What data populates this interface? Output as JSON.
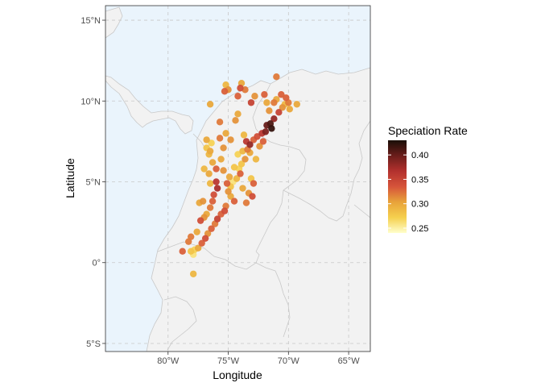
{
  "map": {
    "x_axis_title": "Longitude",
    "y_axis_title": "Latitude",
    "x_ticks": [
      {
        "value": -80,
        "label": "80°W"
      },
      {
        "value": -75,
        "label": "75°W"
      },
      {
        "value": -70,
        "label": "70°W"
      },
      {
        "value": -65,
        "label": "65°W"
      }
    ],
    "y_ticks": [
      {
        "value": 15,
        "label": "15°N"
      },
      {
        "value": 10,
        "label": "10°N"
      },
      {
        "value": 5,
        "label": "5°N"
      },
      {
        "value": 0,
        "label": "0°"
      },
      {
        "value": -5,
        "label": "5°S"
      }
    ],
    "colors": {
      "ocean": "#eaf4fc",
      "land": "#f2f2f2",
      "border": "#c8c8c8",
      "grid": "#cccccc",
      "panel_border": "#333333"
    }
  },
  "legend": {
    "title": "Speciation Rate",
    "labels": [
      "0.40",
      "0.35",
      "0.30",
      "0.25"
    ],
    "scale": [
      "#ffffcc",
      "#f5d04e",
      "#e8a33a",
      "#d6543a",
      "#b3312e",
      "#6b1d1a",
      "#1a0f08"
    ]
  },
  "chart_data": {
    "type": "scatter",
    "xlabel": "Longitude",
    "ylabel": "Latitude",
    "xlim": [
      -85.2,
      -63.2
    ],
    "ylim": [
      -5.5,
      15.9
    ],
    "color_label": "Speciation Rate",
    "color_range": [
      0.24,
      0.43
    ],
    "points": [
      [
        -69.9,
        9.5,
        0.3
      ],
      [
        -70.0,
        9.9,
        0.32
      ],
      [
        -70.2,
        10.2,
        0.33
      ],
      [
        -70.5,
        9.6,
        0.31
      ],
      [
        -70.8,
        9.3,
        0.35
      ],
      [
        -71.2,
        8.9,
        0.38
      ],
      [
        -71.5,
        8.6,
        0.41
      ],
      [
        -71.4,
        8.3,
        0.42
      ],
      [
        -71.8,
        8.5,
        0.4
      ],
      [
        -71.9,
        8.1,
        0.39
      ],
      [
        -72.2,
        8.0,
        0.36
      ],
      [
        -72.6,
        7.8,
        0.34
      ],
      [
        -72.9,
        7.6,
        0.33
      ],
      [
        -73.2,
        7.3,
        0.38
      ],
      [
        -73.5,
        7.5,
        0.36
      ],
      [
        -73.7,
        7.9,
        0.29
      ],
      [
        -73.4,
        7.0,
        0.32
      ],
      [
        -73.2,
        6.8,
        0.3
      ],
      [
        -73.6,
        6.4,
        0.31
      ],
      [
        -73.9,
        6.1,
        0.28
      ],
      [
        -74.1,
        5.8,
        0.27
      ],
      [
        -74.0,
        5.5,
        0.33
      ],
      [
        -74.3,
        5.2,
        0.29
      ],
      [
        -74.6,
        5.0,
        0.26
      ],
      [
        -74.8,
        4.7,
        0.28
      ],
      [
        -75.0,
        4.4,
        0.31
      ],
      [
        -74.8,
        4.1,
        0.3
      ],
      [
        -74.5,
        3.8,
        0.33
      ],
      [
        -75.2,
        3.5,
        0.32
      ],
      [
        -75.3,
        3.2,
        0.34
      ],
      [
        -75.6,
        3.0,
        0.33
      ],
      [
        -75.9,
        2.7,
        0.35
      ],
      [
        -76.1,
        2.4,
        0.32
      ],
      [
        -76.4,
        2.1,
        0.33
      ],
      [
        -76.7,
        1.8,
        0.31
      ],
      [
        -76.9,
        1.5,
        0.34
      ],
      [
        -77.2,
        1.2,
        0.33
      ],
      [
        -77.5,
        0.9,
        0.3
      ],
      [
        -77.8,
        0.8,
        0.27
      ],
      [
        -78.1,
        0.7,
        0.28
      ],
      [
        -77.9,
        0.5,
        0.26
      ],
      [
        -76.0,
        5.0,
        0.36
      ],
      [
        -75.9,
        4.6,
        0.37
      ],
      [
        -76.2,
        4.2,
        0.34
      ],
      [
        -76.3,
        3.8,
        0.33
      ],
      [
        -76.5,
        3.4,
        0.32
      ],
      [
        -76.8,
        3.0,
        0.3
      ],
      [
        -77.0,
        2.8,
        0.31
      ],
      [
        -77.3,
        2.6,
        0.34
      ],
      [
        -76.0,
        5.8,
        0.33
      ],
      [
        -76.3,
        6.2,
        0.3
      ],
      [
        -76.6,
        6.7,
        0.29
      ],
      [
        -76.8,
        7.1,
        0.28
      ],
      [
        -76.4,
        7.4,
        0.27
      ],
      [
        -76.5,
        6.9,
        0.3
      ],
      [
        -75.6,
        6.4,
        0.3
      ],
      [
        -75.4,
        7.1,
        0.31
      ],
      [
        -75.7,
        7.7,
        0.32
      ],
      [
        -75.3,
        10.6,
        0.33
      ],
      [
        -75.0,
        10.7,
        0.31
      ],
      [
        -74.0,
        10.8,
        0.34
      ],
      [
        -73.6,
        10.7,
        0.32
      ],
      [
        -73.9,
        11.1,
        0.3
      ],
      [
        -75.2,
        11.0,
        0.29
      ],
      [
        -74.2,
        9.2,
        0.3
      ],
      [
        -74.4,
        8.8,
        0.31
      ],
      [
        -73.1,
        5.2,
        0.28
      ],
      [
        -72.9,
        4.9,
        0.33
      ],
      [
        -73.0,
        4.1,
        0.34
      ],
      [
        -73.3,
        4.3,
        0.31
      ],
      [
        -72.7,
        6.4,
        0.29
      ],
      [
        -72.4,
        7.2,
        0.31
      ],
      [
        -72.1,
        7.5,
        0.33
      ],
      [
        -71.2,
        9.9,
        0.32
      ],
      [
        -71.0,
        10.1,
        0.3
      ],
      [
        -70.6,
        10.4,
        0.33
      ],
      [
        -70.3,
        9.8,
        0.29
      ],
      [
        -69.3,
        9.8,
        0.3
      ],
      [
        -71.6,
        9.4,
        0.31
      ],
      [
        -72.0,
        10.4,
        0.33
      ],
      [
        -71.8,
        9.9,
        0.3
      ],
      [
        -73.8,
        6.9,
        0.29
      ],
      [
        -74.2,
        6.7,
        0.27
      ],
      [
        -74.5,
        5.9,
        0.28
      ],
      [
        -74.9,
        5.3,
        0.3
      ],
      [
        -75.1,
        4.9,
        0.33
      ],
      [
        -77.1,
        3.8,
        0.31
      ],
      [
        -76.5,
        4.9,
        0.29
      ],
      [
        -77.0,
        5.8,
        0.29
      ],
      [
        -77.4,
        3.7,
        0.3
      ],
      [
        -78.8,
        0.7,
        0.33
      ],
      [
        -78.1,
        1.6,
        0.32
      ],
      [
        -77.9,
        -0.7,
        0.29
      ],
      [
        -75.7,
        8.7,
        0.32
      ],
      [
        -76.8,
        7.6,
        0.3
      ],
      [
        -74.2,
        10.3,
        0.33
      ],
      [
        -73.1,
        9.9,
        0.35
      ],
      [
        -72.8,
        10.3,
        0.31
      ],
      [
        -71.0,
        11.5,
        0.32
      ],
      [
        -76.5,
        9.8,
        0.3
      ],
      [
        -75.2,
        8.0,
        0.3
      ],
      [
        -74.8,
        7.6,
        0.31
      ],
      [
        -73.8,
        4.6,
        0.3
      ],
      [
        -73.5,
        3.7,
        0.32
      ],
      [
        -75.4,
        5.7,
        0.31
      ],
      [
        -76.6,
        5.5,
        0.3
      ],
      [
        -77.6,
        1.9,
        0.3
      ],
      [
        -78.3,
        1.3,
        0.32
      ]
    ]
  }
}
